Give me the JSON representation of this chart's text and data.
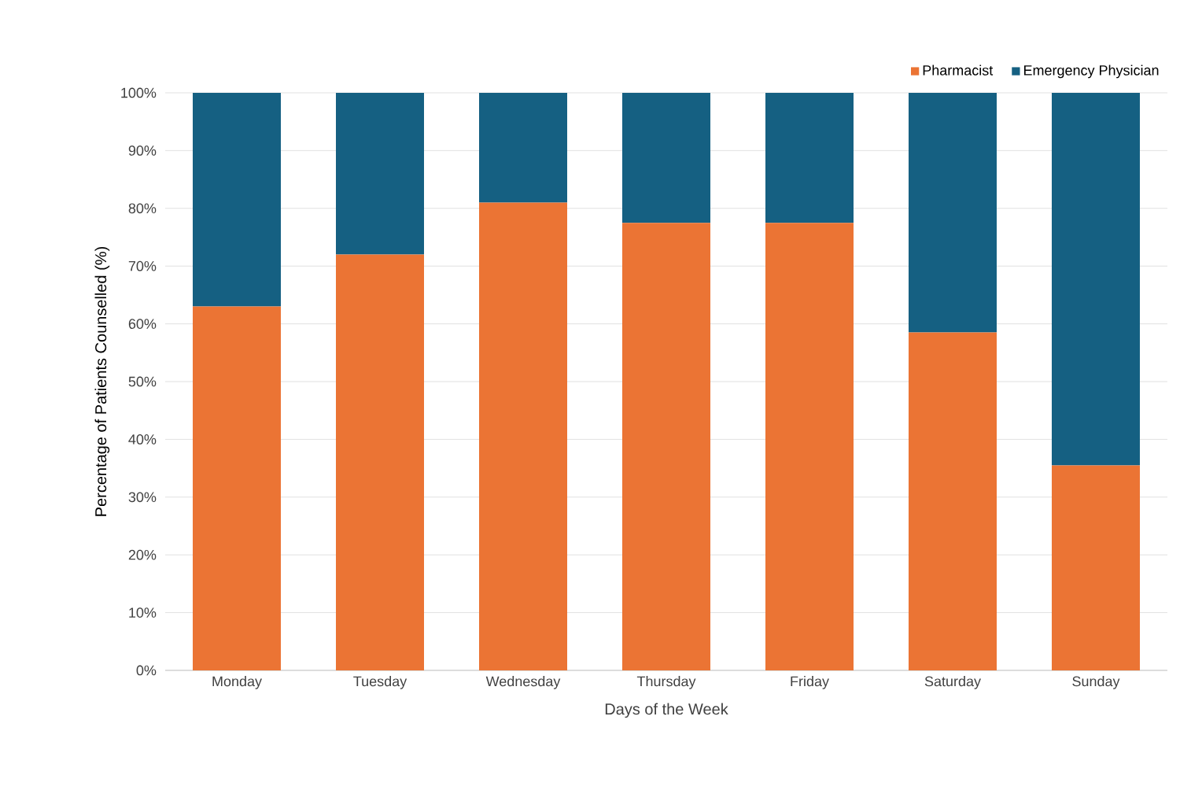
{
  "chart_data": {
    "type": "bar",
    "stacked": true,
    "xlabel": "Days of the Week",
    "ylabel": "Percentage of Patients Counselled (%)",
    "categories": [
      "Monday",
      "Tuesday",
      "Wednesday",
      "Thursday",
      "Friday",
      "Saturday",
      "Sunday"
    ],
    "series": [
      {
        "name": "Pharmacist",
        "color": "#eb7434",
        "values": [
          63,
          72,
          81,
          77.5,
          77.5,
          58.5,
          35.5
        ]
      },
      {
        "name": "Emergency Physician",
        "color": "#156082",
        "values": [
          37,
          28,
          19,
          22.5,
          22.5,
          41.5,
          64.5
        ]
      }
    ],
    "ylim": [
      0,
      100
    ],
    "yticks": [
      {
        "value": 0,
        "label": "0%"
      },
      {
        "value": 10,
        "label": "10%"
      },
      {
        "value": 20,
        "label": "20%"
      },
      {
        "value": 30,
        "label": "30%"
      },
      {
        "value": 40,
        "label": "40%"
      },
      {
        "value": 50,
        "label": "50%"
      },
      {
        "value": 60,
        "label": "60%"
      },
      {
        "value": 70,
        "label": "70%"
      },
      {
        "value": 80,
        "label": "80%"
      },
      {
        "value": 90,
        "label": "90%"
      },
      {
        "value": 100,
        "label": "100%"
      }
    ],
    "grid": "y",
    "legend": "top right"
  }
}
